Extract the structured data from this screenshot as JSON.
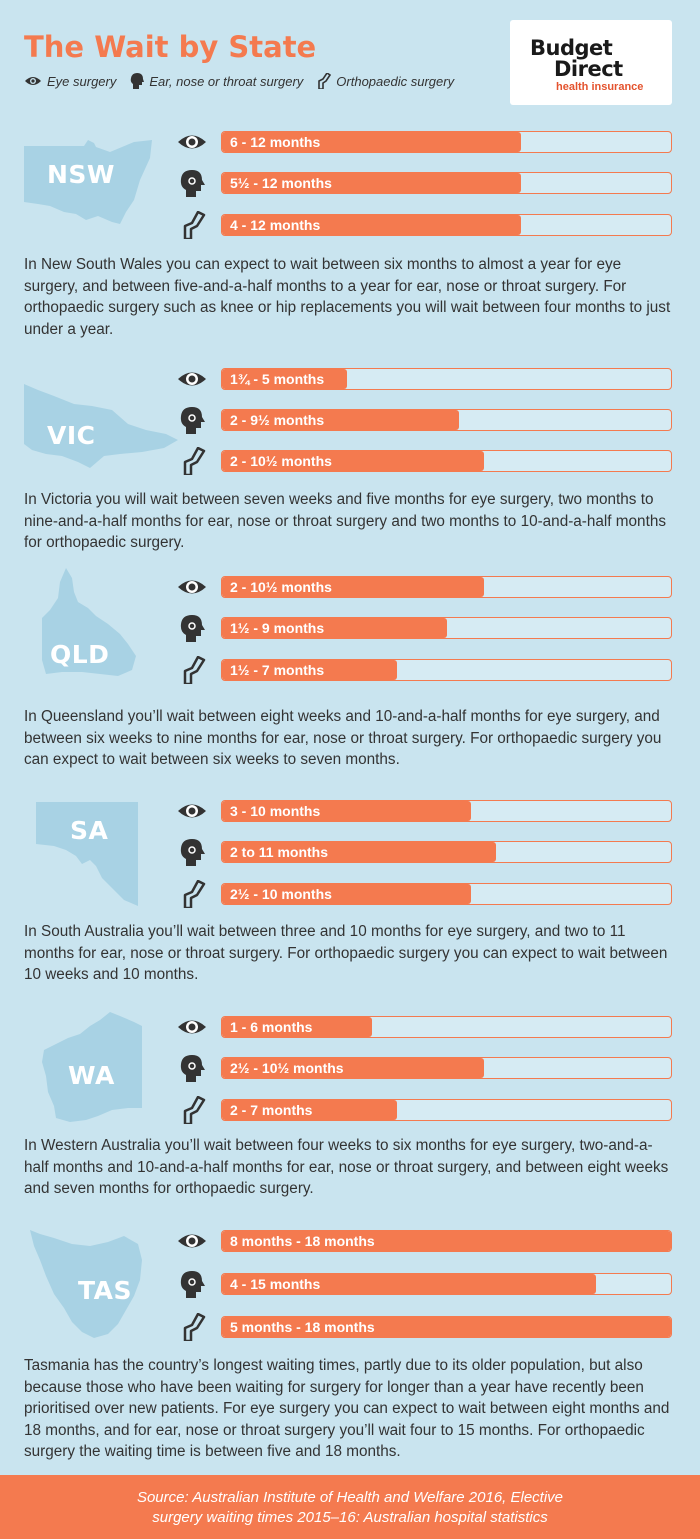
{
  "title": "The Wait by State",
  "legend": [
    {
      "icon": "eye-icon",
      "label": "Eye surgery"
    },
    {
      "icon": "head-icon",
      "label": "Ear, nose or throat surgery"
    },
    {
      "icon": "knee-icon",
      "label": "Orthopaedic surgery"
    }
  ],
  "logo": {
    "line1": "Budget",
    "line2": "Direct",
    "line3": "health insurance"
  },
  "colors": {
    "accent": "#f47a4f",
    "background": "#c9e4ef",
    "map": "#a8d2e4",
    "icon": "#333333"
  },
  "chart_data": {
    "type": "bar",
    "unit": "months",
    "series": [
      "Eye surgery",
      "Ear, nose or throat surgery",
      "Orthopaedic surgery"
    ],
    "states": [
      {
        "abbr": "NSW",
        "bars": [
          {
            "label": "6 - 12 months",
            "max": 12
          },
          {
            "label": "5½ - 12 months",
            "max": 12
          },
          {
            "label": "4 - 12 months",
            "max": 12
          }
        ]
      },
      {
        "abbr": "VIC",
        "bars": [
          {
            "label": "1¾ - 5 months",
            "max": 5
          },
          {
            "label": "2 - 9½ months",
            "max": 9.5
          },
          {
            "label": "2 - 10½ months",
            "max": 10.5
          }
        ]
      },
      {
        "abbr": "QLD",
        "bars": [
          {
            "label": "2 - 10½ months",
            "max": 10.5
          },
          {
            "label": "1½ - 9 months",
            "max": 9
          },
          {
            "label": "1½ - 7 months",
            "max": 7
          }
        ]
      },
      {
        "abbr": "SA",
        "bars": [
          {
            "label": "3 - 10 months",
            "max": 10
          },
          {
            "label": "2 to 11 months",
            "max": 11
          },
          {
            "label": "2½ - 10 months",
            "max": 10
          }
        ]
      },
      {
        "abbr": "WA",
        "bars": [
          {
            "label": "1 - 6 months",
            "max": 6
          },
          {
            "label": "2½ - 10½ months",
            "max": 10.5
          },
          {
            "label": "2 - 7 months",
            "max": 7
          }
        ]
      },
      {
        "abbr": "TAS",
        "bars": [
          {
            "label": "8 months - 18 months",
            "max": 18
          },
          {
            "label": "4 - 15 months",
            "max": 15
          },
          {
            "label": "5 months - 18 months",
            "max": 18
          }
        ]
      }
    ]
  },
  "paragraphs": [
    "In New South Wales you can expect to wait between six months to almost a year for eye surgery, and between five-and-a-half months to a year for ear, nose or throat surgery. For orthopaedic surgery such as knee or hip replacements you will wait between four months to just under a year.",
    "In Victoria you will wait between seven weeks and five months for eye surgery, two months to nine-and-a-half months for ear, nose or throat surgery and two months to 10-and-a-half months for orthopaedic surgery.",
    "In Queensland you’ll wait between eight weeks and 10-and-a-half months for eye surgery, and between six weeks to nine months for ear, nose or throat surgery. For orthopaedic surgery you can expect to wait between six weeks to seven months.",
    "In South Australia you’ll wait between three and 10 months for eye surgery, and two to 11 months for ear, nose or throat surgery. For orthopaedic surgery you can expect to wait between 10 weeks and 10 months.",
    "In Western Australia you’ll wait between four weeks to six months for eye surgery, two-and-a-half months and 10-and-a-half months for ear, nose or throat surgery, and between eight weeks and seven months for orthopaedic surgery.",
    "Tasmania has the country’s longest waiting times, partly due to its older population, but also because those who have been waiting for surgery for longer than a year have recently been prioritised over new patients. For eye surgery you can expect to wait between eight months and 18 months, and for ear, nose or throat surgery you’ll wait four to 15 months. For orthopaedic surgery the waiting time is between five and 18 months."
  ],
  "footer": {
    "line1": "Source: Australian Institute of Health and Welfare 2016, Elective",
    "line2": "surgery waiting times 2015–16: Australian hospital statistics"
  }
}
